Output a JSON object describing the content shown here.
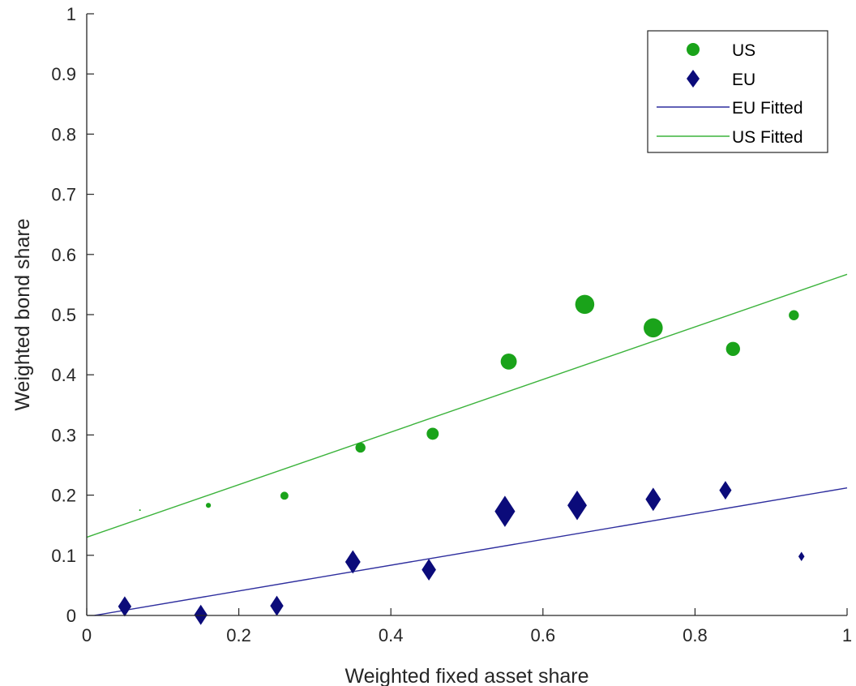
{
  "chart_data": {
    "type": "scatter",
    "xlabel": "Weighted fixed asset share",
    "ylabel": "Weighted bond share",
    "xlim": [
      0,
      1
    ],
    "ylim": [
      0,
      1
    ],
    "xticks": [
      "0",
      "0.2",
      "0.4",
      "0.6",
      "0.8",
      "1"
    ],
    "yticks": [
      "0",
      "0.1",
      "0.2",
      "0.3",
      "0.4",
      "0.5",
      "0.6",
      "0.7",
      "0.8",
      "0.9",
      "1"
    ],
    "xtick_values": [
      0,
      0.2,
      0.4,
      0.6,
      0.8,
      1
    ],
    "ytick_values": [
      0,
      0.1,
      0.2,
      0.3,
      0.4,
      0.5,
      0.6,
      0.7,
      0.8,
      0.9,
      1
    ],
    "grid": false,
    "legend_position": "top-right",
    "series": [
      {
        "name": "US",
        "kind": "scatter",
        "marker": "circle",
        "color": "#1aa31a",
        "points": [
          {
            "x": 0.07,
            "y": 0.175,
            "weight": 0.1
          },
          {
            "x": 0.16,
            "y": 0.183,
            "weight": 0.5
          },
          {
            "x": 0.26,
            "y": 0.199,
            "weight": 0.8
          },
          {
            "x": 0.36,
            "y": 0.279,
            "weight": 1.0
          },
          {
            "x": 0.455,
            "y": 0.302,
            "weight": 1.2
          },
          {
            "x": 0.555,
            "y": 0.422,
            "weight": 1.6
          },
          {
            "x": 0.655,
            "y": 0.517,
            "weight": 1.9
          },
          {
            "x": 0.745,
            "y": 0.478,
            "weight": 1.9
          },
          {
            "x": 0.85,
            "y": 0.443,
            "weight": 1.4
          },
          {
            "x": 0.93,
            "y": 0.499,
            "weight": 1.0
          }
        ]
      },
      {
        "name": "EU",
        "kind": "scatter",
        "marker": "diamond",
        "color": "#0b0b7a",
        "points": [
          {
            "x": 0.05,
            "y": 0.015,
            "weight": 1.3
          },
          {
            "x": 0.15,
            "y": 0.001,
            "weight": 1.3
          },
          {
            "x": 0.25,
            "y": 0.016,
            "weight": 1.3
          },
          {
            "x": 0.35,
            "y": 0.089,
            "weight": 1.5
          },
          {
            "x": 0.45,
            "y": 0.076,
            "weight": 1.4
          },
          {
            "x": 0.55,
            "y": 0.173,
            "weight": 2.0
          },
          {
            "x": 0.645,
            "y": 0.183,
            "weight": 1.9
          },
          {
            "x": 0.745,
            "y": 0.193,
            "weight": 1.5
          },
          {
            "x": 0.84,
            "y": 0.208,
            "weight": 1.2
          },
          {
            "x": 0.94,
            "y": 0.098,
            "weight": 0.6
          }
        ]
      },
      {
        "name": "EU Fitted",
        "kind": "line",
        "color": "#2e2e9e",
        "x": [
          0.01,
          1.0
        ],
        "y": [
          0.0,
          0.212
        ]
      },
      {
        "name": "US Fitted",
        "kind": "line",
        "color": "#3cb33c",
        "x": [
          0.0,
          1.0
        ],
        "y": [
          0.13,
          0.567
        ]
      }
    ]
  }
}
